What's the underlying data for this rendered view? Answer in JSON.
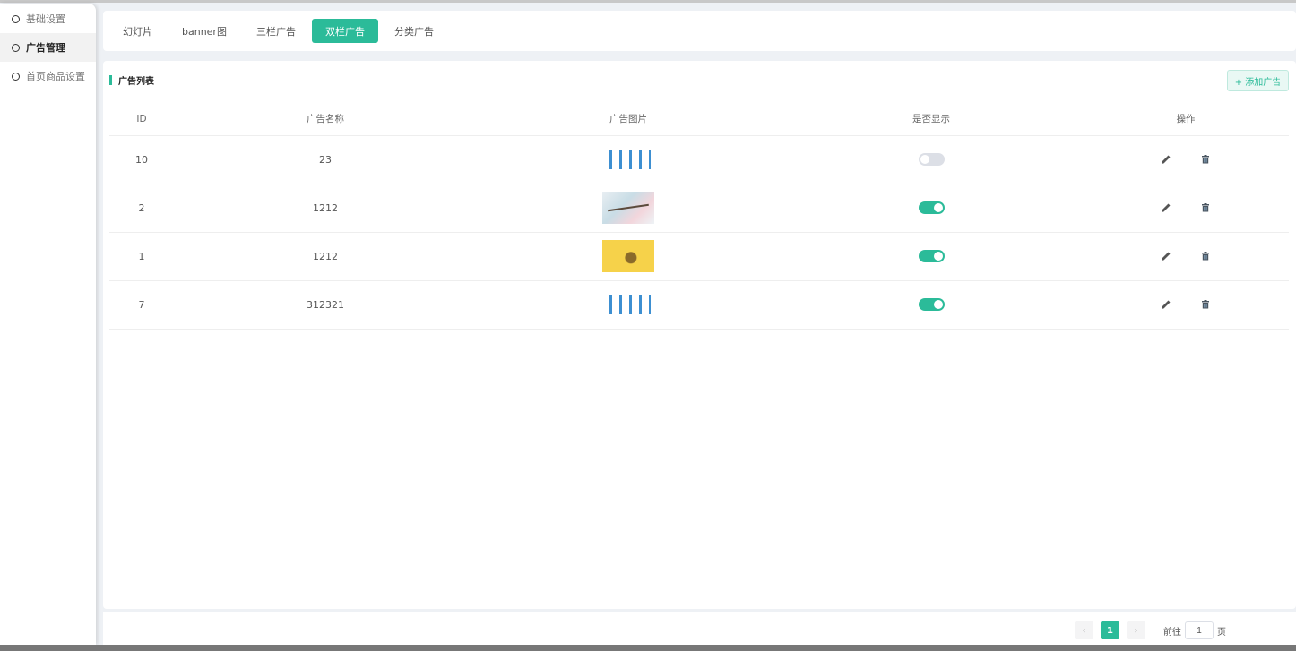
{
  "sidebar": {
    "items": [
      {
        "label": "基础设置"
      },
      {
        "label": "广告管理"
      },
      {
        "label": "首页商品设置"
      }
    ]
  },
  "tabs": [
    {
      "label": "幻灯片"
    },
    {
      "label": "banner图"
    },
    {
      "label": "三栏广告"
    },
    {
      "label": "双栏广告"
    },
    {
      "label": "分类广告"
    }
  ],
  "active_tab": "双栏广告",
  "list": {
    "title": "广告列表",
    "add_label": "+ 添加广告",
    "columns": [
      "ID",
      "广告名称",
      "广告图片",
      "是否显示",
      "操作"
    ],
    "rows": [
      {
        "id": "10",
        "name": "23",
        "image": "bottles",
        "show": false
      },
      {
        "id": "2",
        "name": "1212",
        "image": "flower",
        "show": true
      },
      {
        "id": "1",
        "name": "1212",
        "image": "yellow",
        "show": true
      },
      {
        "id": "7",
        "name": "312321",
        "image": "bottles",
        "show": true
      }
    ]
  },
  "pagination": {
    "current": "1",
    "goto_label": "前往",
    "goto_value": "1",
    "page_suffix": "页"
  },
  "colors": {
    "accent": "#2bbb99"
  }
}
